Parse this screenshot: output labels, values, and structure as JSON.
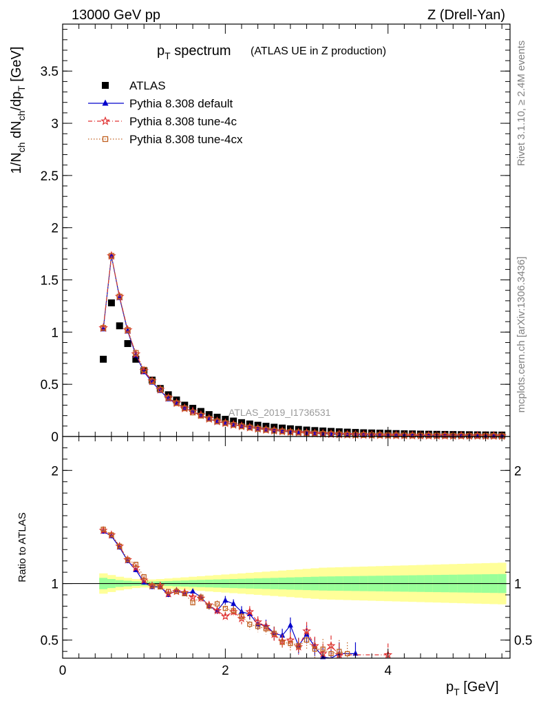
{
  "header": {
    "left": "13000 GeV pp",
    "right": "Z (Drell-Yan)"
  },
  "side_text": {
    "rivet": "Rivet 3.1.10, ≥ 2.4M events",
    "mcplots": "mcplots.cern.ch [arXiv:1306.3436]"
  },
  "chart_data": [
    {
      "type": "scatter",
      "name": "main-panel",
      "title_main": "p",
      "title_main_sub": "T",
      "title_main_rest": " spectrum",
      "title_sub": "(ATLAS UE in Z production)",
      "ylabel": "1/N_ch dN_ch/dp_T [GeV]",
      "ylabel_parts": [
        "1/N",
        "ch",
        " dN",
        "ch",
        "/dp",
        "T",
        " [GeV]"
      ],
      "watermark": "ATLAS_2019_I1736531",
      "xlim": [
        0,
        5.5
      ],
      "ylim": [
        0,
        3.95
      ],
      "yticks": [
        0,
        0.5,
        1,
        1.5,
        2,
        2.5,
        3,
        3.5
      ],
      "ytick_labels": [
        "0",
        "0.5",
        "1",
        "1.5",
        "2",
        "2.5",
        "3",
        "3.5"
      ],
      "legend_position": "top-left",
      "series": [
        {
          "name": "ATLAS",
          "color": "#000000",
          "marker": "square",
          "x": [
            0.5,
            0.6,
            0.7,
            0.8,
            0.9,
            1.0,
            1.1,
            1.2,
            1.3,
            1.4,
            1.5,
            1.6,
            1.7,
            1.8,
            1.9,
            2.0,
            2.1,
            2.2,
            2.3,
            2.4,
            2.5,
            2.6,
            2.7,
            2.8,
            2.9,
            3.0,
            3.1,
            3.2,
            3.3,
            3.4,
            3.5,
            3.6,
            3.7,
            3.8,
            3.9,
            4.0,
            4.1,
            4.2,
            4.3,
            4.4,
            4.5,
            4.6,
            4.7,
            4.8,
            4.9,
            5.0,
            5.1,
            5.2,
            5.3,
            5.4
          ],
          "values": [
            0.74,
            1.28,
            1.06,
            0.89,
            0.74,
            0.63,
            0.54,
            0.46,
            0.4,
            0.35,
            0.3,
            0.27,
            0.24,
            0.21,
            0.185,
            0.165,
            0.148,
            0.133,
            0.12,
            0.108,
            0.098,
            0.089,
            0.081,
            0.074,
            0.068,
            0.062,
            0.057,
            0.053,
            0.049,
            0.045,
            0.042,
            0.039,
            0.036,
            0.034,
            0.032,
            0.03,
            0.028,
            0.026,
            0.025,
            0.023,
            0.022,
            0.021,
            0.02,
            0.019,
            0.018,
            0.017,
            0.016,
            0.015,
            0.0145,
            0.014
          ]
        },
        {
          "name": "Pythia 8.308 default",
          "color": "#0000cc",
          "marker": "triangle",
          "x": [
            0.5,
            0.6,
            0.7,
            0.8,
            0.9,
            1.0,
            1.1,
            1.2,
            1.3,
            1.4,
            1.5,
            1.6,
            1.7,
            1.8,
            1.9,
            2.0,
            2.1,
            2.2,
            2.3,
            2.4,
            2.5,
            2.6,
            2.7,
            2.8,
            2.9,
            3.0,
            3.1,
            3.2,
            3.3,
            3.4,
            3.5,
            3.6,
            3.7,
            3.8,
            3.9,
            4.0,
            4.1,
            4.2,
            4.3,
            4.4,
            4.5,
            4.6,
            4.7,
            4.8,
            4.9,
            5.0,
            5.1,
            5.2,
            5.3,
            5.4
          ],
          "values": [
            1.03,
            1.73,
            1.33,
            1.01,
            0.78,
            0.62,
            0.52,
            0.44,
            0.36,
            0.32,
            0.27,
            0.24,
            0.2,
            0.17,
            0.14,
            0.13,
            0.115,
            0.1,
            0.088,
            0.075,
            0.066,
            0.058,
            0.05,
            0.044,
            0.039,
            0.034,
            0.03,
            0.027,
            0.024,
            0.021,
            0.019,
            0.017,
            0.015,
            0.014,
            0.013,
            0.012,
            0.011,
            0.01,
            0.0095,
            0.009,
            0.0085,
            0.008,
            0.0075,
            0.007,
            0.0068,
            0.0065,
            0.006,
            0.0058,
            0.0055,
            0.0052
          ]
        },
        {
          "name": "Pythia 8.308 tune-4c",
          "color": "#e03030",
          "marker": "star",
          "x": [
            0.5,
            0.6,
            0.7,
            0.8,
            0.9,
            1.0,
            1.1,
            1.2,
            1.3,
            1.4,
            1.5,
            1.6,
            1.7,
            1.8,
            1.9,
            2.0,
            2.1,
            2.2,
            2.3,
            2.4,
            2.5,
            2.6,
            2.7,
            2.8,
            2.9,
            3.0,
            3.1,
            3.2,
            3.3,
            3.4,
            3.5,
            3.6,
            3.7,
            3.8,
            3.9,
            4.0,
            4.1,
            4.2,
            4.3,
            4.4,
            4.5,
            4.6,
            4.7,
            4.8,
            4.9,
            5.0,
            5.1,
            5.2,
            5.3,
            5.4
          ],
          "values": [
            1.04,
            1.73,
            1.34,
            1.02,
            0.79,
            0.63,
            0.53,
            0.45,
            0.37,
            0.32,
            0.27,
            0.24,
            0.205,
            0.17,
            0.145,
            0.128,
            0.112,
            0.098,
            0.086,
            0.074,
            0.064,
            0.056,
            0.049,
            0.043,
            0.038,
            0.033,
            0.029,
            0.026,
            0.023,
            0.02,
            0.018,
            0.016,
            0.015,
            0.014,
            0.013,
            0.012,
            0.011,
            0.01,
            0.0095,
            0.009,
            0.0085,
            0.008,
            0.0075,
            0.007,
            0.0068,
            0.0065,
            0.006,
            0.0058,
            0.0055,
            0.0052
          ]
        },
        {
          "name": "Pythia 8.308 tune-4cx",
          "color": "#c06020",
          "marker": "open-square",
          "x": [
            0.5,
            0.6,
            0.7,
            0.8,
            0.9,
            1.0,
            1.1,
            1.2,
            1.3,
            1.4,
            1.5,
            1.6,
            1.7,
            1.8,
            1.9,
            2.0,
            2.1,
            2.2,
            2.3,
            2.4,
            2.5,
            2.6,
            2.7,
            2.8,
            2.9,
            3.0,
            3.1,
            3.2,
            3.3,
            3.4,
            3.5,
            3.6,
            3.7,
            3.8,
            3.9,
            4.0,
            4.1,
            4.2,
            4.3,
            4.4,
            4.5,
            4.6,
            4.7,
            4.8,
            4.9,
            5.0,
            5.1,
            5.2,
            5.3,
            5.4
          ],
          "values": [
            1.04,
            1.73,
            1.34,
            1.02,
            0.8,
            0.64,
            0.53,
            0.45,
            0.37,
            0.32,
            0.27,
            0.23,
            0.2,
            0.17,
            0.145,
            0.128,
            0.112,
            0.098,
            0.086,
            0.074,
            0.064,
            0.056,
            0.049,
            0.043,
            0.038,
            0.033,
            0.029,
            0.026,
            0.023,
            0.02,
            0.018,
            0.016,
            0.015,
            0.014,
            0.013,
            0.012,
            0.011,
            0.01,
            0.0095,
            0.009,
            0.0085,
            0.008,
            0.0075,
            0.007,
            0.0068,
            0.0065,
            0.006,
            0.0058,
            0.0055,
            0.0052
          ]
        }
      ]
    },
    {
      "type": "scatter",
      "name": "ratio-panel",
      "ylabel": "Ratio to ATLAS",
      "xlabel_main": "p",
      "xlabel_sub": "T",
      "xlabel_rest": " [GeV]",
      "xlim": [
        0,
        5.5
      ],
      "ylim": [
        0.34,
        2.3
      ],
      "xticks": [
        0,
        2,
        4
      ],
      "xtick_labels": [
        "0",
        "2",
        "4"
      ],
      "yticks": [
        0.5,
        1,
        2
      ],
      "ytick_labels": [
        "0.5",
        "1",
        "2"
      ],
      "band_x": [
        0.45,
        0.55,
        0.65,
        0.75,
        0.85,
        0.95,
        1.05,
        1.15,
        1.25,
        1.35,
        1.45,
        1.55,
        1.65,
        1.75,
        1.85,
        1.95,
        2.05,
        2.15,
        2.25,
        2.35,
        2.45,
        2.55,
        2.65,
        2.75,
        2.85,
        2.95,
        3.05,
        3.15,
        3.25,
        3.35,
        3.45,
        3.55,
        3.65,
        3.75,
        3.85,
        3.95,
        4.05,
        4.15,
        4.25,
        4.35,
        4.45,
        4.55,
        4.65,
        4.75,
        4.85,
        4.95,
        5.05,
        5.15,
        5.25,
        5.35,
        5.45
      ],
      "band_inner": [
        0.05,
        0.04,
        0.03,
        0.025,
        0.02,
        0.018,
        0.018,
        0.02,
        0.022,
        0.025,
        0.027,
        0.03,
        0.032,
        0.034,
        0.036,
        0.038,
        0.04,
        0.042,
        0.044,
        0.046,
        0.048,
        0.05,
        0.052,
        0.054,
        0.056,
        0.058,
        0.06,
        0.062,
        0.063,
        0.064,
        0.065,
        0.066,
        0.067,
        0.068,
        0.069,
        0.07,
        0.071,
        0.072,
        0.073,
        0.074,
        0.075,
        0.076,
        0.077,
        0.078,
        0.079,
        0.08,
        0.081,
        0.082,
        0.083,
        0.084,
        0.085
      ],
      "band_outer": [
        0.09,
        0.075,
        0.06,
        0.05,
        0.04,
        0.035,
        0.036,
        0.04,
        0.045,
        0.05,
        0.055,
        0.06,
        0.065,
        0.07,
        0.075,
        0.08,
        0.085,
        0.09,
        0.095,
        0.1,
        0.105,
        0.11,
        0.115,
        0.12,
        0.125,
        0.13,
        0.135,
        0.14,
        0.142,
        0.144,
        0.146,
        0.148,
        0.15,
        0.152,
        0.154,
        0.156,
        0.158,
        0.16,
        0.162,
        0.164,
        0.166,
        0.168,
        0.17,
        0.172,
        0.174,
        0.176,
        0.178,
        0.18,
        0.182,
        0.184,
        0.186
      ],
      "series": [
        {
          "name": "Pythia 8.308 default",
          "color": "#0000cc",
          "marker": "triangle",
          "x": [
            0.5,
            0.6,
            0.7,
            0.8,
            0.9,
            1.0,
            1.1,
            1.2,
            1.3,
            1.4,
            1.5,
            1.6,
            1.7,
            1.8,
            1.9,
            2.0,
            2.1,
            2.2,
            2.3,
            2.4,
            2.5,
            2.6,
            2.7,
            2.8,
            2.9,
            3.0,
            3.1,
            3.2,
            3.3,
            3.4,
            3.6
          ],
          "values": [
            1.46,
            1.42,
            1.32,
            1.2,
            1.12,
            1.01,
            0.97,
            0.97,
            0.9,
            0.94,
            0.91,
            0.93,
            0.88,
            0.8,
            0.76,
            0.85,
            0.82,
            0.75,
            0.73,
            0.64,
            0.63,
            0.56,
            0.54,
            0.63,
            0.45,
            0.55,
            0.44,
            0.35,
            0.33,
            0.38,
            0.38
          ],
          "err": [
            0.02,
            0.02,
            0.02,
            0.02,
            0.02,
            0.02,
            0.02,
            0.02,
            0.02,
            0.02,
            0.02,
            0.02,
            0.03,
            0.03,
            0.03,
            0.04,
            0.04,
            0.05,
            0.05,
            0.05,
            0.05,
            0.06,
            0.06,
            0.07,
            0.07,
            0.08,
            0.08,
            0.09,
            0.09,
            0.1,
            0.1
          ]
        },
        {
          "name": "Pythia 8.308 tune-4c",
          "color": "#e03030",
          "marker": "star",
          "x": [
            0.5,
            0.6,
            0.7,
            0.8,
            0.9,
            1.0,
            1.1,
            1.2,
            1.3,
            1.4,
            1.5,
            1.6,
            1.7,
            1.8,
            1.9,
            2.0,
            2.1,
            2.2,
            2.3,
            2.4,
            2.5,
            2.6,
            2.7,
            2.8,
            2.9,
            3.0,
            3.1,
            3.2,
            3.3,
            3.4,
            4.0
          ],
          "values": [
            1.47,
            1.43,
            1.33,
            1.21,
            1.14,
            1.03,
            0.98,
            0.98,
            0.91,
            0.93,
            0.92,
            0.88,
            0.87,
            0.81,
            0.76,
            0.71,
            0.75,
            0.69,
            0.75,
            0.66,
            0.62,
            0.55,
            0.49,
            0.5,
            0.44,
            0.58,
            0.45,
            0.38,
            0.45,
            0.37,
            0.37
          ],
          "err": [
            0.02,
            0.02,
            0.02,
            0.02,
            0.02,
            0.02,
            0.02,
            0.02,
            0.02,
            0.02,
            0.02,
            0.02,
            0.03,
            0.03,
            0.03,
            0.04,
            0.04,
            0.05,
            0.05,
            0.05,
            0.05,
            0.06,
            0.06,
            0.07,
            0.07,
            0.08,
            0.08,
            0.09,
            0.09,
            0.1,
            0.1
          ]
        },
        {
          "name": "Pythia 8.308 tune-4cx",
          "color": "#c06020",
          "marker": "open-square",
          "x": [
            0.5,
            0.6,
            0.7,
            0.8,
            0.9,
            1.0,
            1.1,
            1.2,
            1.3,
            1.4,
            1.5,
            1.6,
            1.7,
            1.8,
            1.9,
            2.0,
            2.1,
            2.2,
            2.3,
            2.4,
            2.5,
            2.6,
            2.7,
            2.8,
            2.9,
            3.0,
            3.1,
            3.2,
            3.3,
            3.4,
            3.5
          ],
          "values": [
            1.48,
            1.43,
            1.33,
            1.21,
            1.17,
            1.06,
            0.98,
            0.97,
            0.93,
            0.93,
            0.91,
            0.83,
            0.88,
            0.8,
            0.82,
            0.78,
            0.76,
            0.71,
            0.64,
            0.62,
            0.6,
            0.56,
            0.48,
            0.47,
            0.45,
            0.5,
            0.42,
            0.42,
            0.38,
            0.4,
            0.38
          ],
          "err": [
            0.02,
            0.02,
            0.02,
            0.02,
            0.02,
            0.02,
            0.02,
            0.02,
            0.02,
            0.02,
            0.02,
            0.02,
            0.03,
            0.03,
            0.03,
            0.04,
            0.04,
            0.05,
            0.05,
            0.05,
            0.05,
            0.06,
            0.06,
            0.07,
            0.07,
            0.08,
            0.08,
            0.09,
            0.09,
            0.1,
            0.1
          ]
        }
      ]
    }
  ]
}
